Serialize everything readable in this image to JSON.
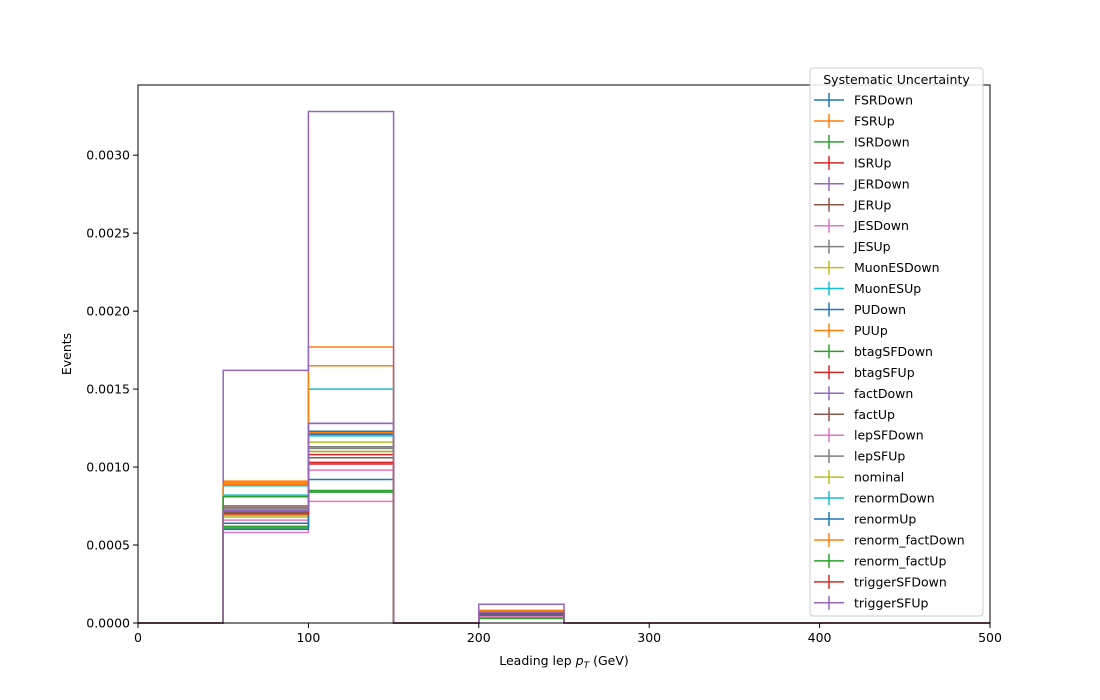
{
  "chart_data": {
    "type": "step",
    "xlabel": "Leading lep",
    "xlabel_sym": "p",
    "xlabel_sub": "T",
    "xlabel_unit": "(GeV)",
    "ylabel": "Events",
    "xlim": [
      0,
      500
    ],
    "ylim": [
      0,
      0.00345
    ],
    "xticks": [
      0,
      100,
      200,
      300,
      400,
      500
    ],
    "yticks": [
      0.0,
      0.0005,
      0.001,
      0.0015,
      0.002,
      0.0025,
      0.003
    ],
    "ytick_labels": [
      "0.0000",
      "0.0005",
      "0.0010",
      "0.0015",
      "0.0020",
      "0.0025",
      "0.0030"
    ],
    "bin_edges": [
      0,
      50,
      100,
      150,
      200,
      250,
      300,
      350,
      400,
      450,
      500
    ],
    "grid": false,
    "legend": {
      "title": "Systematic Uncertainty",
      "placement": "upper-right"
    },
    "series": [
      {
        "name": "FSRDown",
        "color": "#1f77b4",
        "values": [
          0,
          0.00081,
          0.00123,
          0,
          6e-05,
          0,
          0,
          0,
          0,
          0
        ]
      },
      {
        "name": "FSRUp",
        "color": "#ff7f0e",
        "values": [
          0,
          0.0009,
          0.00165,
          0,
          8e-05,
          0,
          0,
          0,
          0,
          0
        ]
      },
      {
        "name": "ISRDown",
        "color": "#2ca02c",
        "values": [
          0,
          0.00062,
          0.00085,
          0,
          4e-05,
          0,
          0,
          0,
          0,
          0
        ]
      },
      {
        "name": "ISRUp",
        "color": "#d62728",
        "values": [
          0,
          0.0007,
          0.00108,
          0,
          6e-05,
          0,
          0,
          0,
          0,
          0
        ]
      },
      {
        "name": "JERDown",
        "color": "#9467bd",
        "values": [
          0,
          0.00072,
          0.00128,
          0,
          7e-05,
          0,
          0,
          0,
          0,
          0
        ]
      },
      {
        "name": "JERUp",
        "color": "#8c564b",
        "values": [
          0,
          0.00075,
          0.0011,
          0,
          6e-05,
          0,
          0,
          0,
          0,
          0
        ]
      },
      {
        "name": "JESDown",
        "color": "#e377c2",
        "values": [
          0,
          0.00058,
          0.00078,
          0,
          4e-05,
          0,
          0,
          0,
          0,
          0
        ]
      },
      {
        "name": "JESUp",
        "color": "#7f7f7f",
        "values": [
          0,
          0.00074,
          0.00112,
          0,
          6e-05,
          0,
          0,
          0,
          0,
          0
        ]
      },
      {
        "name": "MuonESDown",
        "color": "#bcbd22",
        "values": [
          0,
          0.00068,
          0.00116,
          0,
          6e-05,
          0,
          0,
          0,
          0,
          0
        ]
      },
      {
        "name": "MuonESUp",
        "color": "#17becf",
        "values": [
          0,
          0.00088,
          0.0015,
          0,
          7e-05,
          0,
          0,
          0,
          0,
          0
        ]
      },
      {
        "name": "PUDown",
        "color": "#1f77b4",
        "values": [
          0,
          0.00064,
          0.00092,
          0,
          5e-05,
          0,
          0,
          0,
          0,
          0
        ]
      },
      {
        "name": "PUUp",
        "color": "#ff7f0e",
        "values": [
          0,
          0.00091,
          0.00177,
          0,
          8e-05,
          0,
          0,
          0,
          0,
          0
        ]
      },
      {
        "name": "btagSFDown",
        "color": "#2ca02c",
        "values": [
          0,
          0.00061,
          0.00084,
          0,
          3e-05,
          0,
          0,
          0,
          0,
          0
        ]
      },
      {
        "name": "btagSFUp",
        "color": "#d62728",
        "values": [
          0,
          0.00071,
          0.00102,
          0,
          5e-05,
          0,
          0,
          0,
          0,
          0
        ]
      },
      {
        "name": "factDown",
        "color": "#9467bd",
        "values": [
          0,
          0.00162,
          0.00328,
          0,
          0.00012,
          0,
          0,
          0,
          0,
          0
        ]
      },
      {
        "name": "factUp",
        "color": "#8c564b",
        "values": [
          0,
          0.00071,
          0.00106,
          0,
          6e-05,
          0,
          0,
          0,
          0,
          0
        ]
      },
      {
        "name": "lepSFDown",
        "color": "#e377c2",
        "values": [
          0,
          0.00066,
          0.00098,
          0,
          5e-05,
          0,
          0,
          0,
          0,
          0
        ]
      },
      {
        "name": "lepSFUp",
        "color": "#7f7f7f",
        "values": [
          0,
          0.00073,
          0.00113,
          0,
          6e-05,
          0,
          0,
          0,
          0,
          0
        ]
      },
      {
        "name": "nominal",
        "color": "#bcbd22",
        "values": [
          0,
          0.00069,
          0.0011,
          0,
          6e-05,
          0,
          0,
          0,
          0,
          0
        ]
      },
      {
        "name": "renormDown",
        "color": "#17becf",
        "values": [
          0,
          0.00082,
          0.0012,
          0,
          6e-05,
          0,
          0,
          0,
          0,
          0
        ]
      },
      {
        "name": "renormUp",
        "color": "#1f77b4",
        "values": [
          0,
          0.0006,
          0.00121,
          0,
          5e-05,
          0,
          0,
          0,
          0,
          0
        ]
      },
      {
        "name": "renorm_factDown",
        "color": "#ff7f0e",
        "values": [
          0,
          0.00089,
          0.00122,
          0,
          7e-05,
          0,
          0,
          0,
          0,
          0
        ]
      },
      {
        "name": "renorm_factUp",
        "color": "#2ca02c",
        "values": [
          0,
          0.00081,
          0.00084,
          0,
          3e-05,
          0,
          0,
          0,
          0,
          0
        ]
      },
      {
        "name": "triggerSFDown",
        "color": "#d62728",
        "values": [
          0,
          0.0007,
          0.00103,
          0,
          6e-05,
          0,
          0,
          0,
          0,
          0
        ]
      },
      {
        "name": "triggerSFUp",
        "color": "#9467bd",
        "values": [
          0,
          0.00072,
          0.00128,
          0,
          7e-05,
          0,
          0,
          0,
          0,
          0
        ]
      }
    ]
  }
}
